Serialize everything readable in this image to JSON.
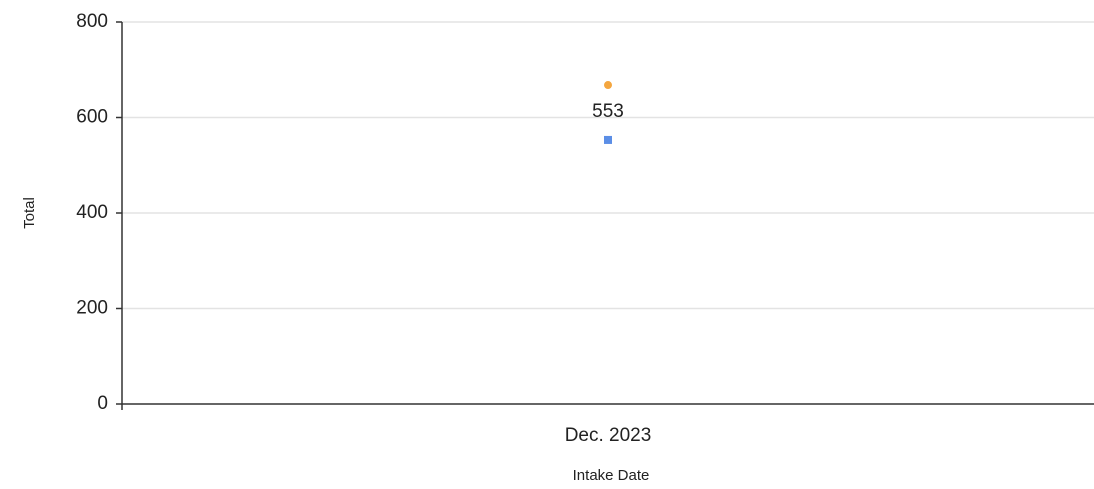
{
  "chart_data": {
    "type": "line",
    "categories": [
      "Dec. 2023"
    ],
    "series": [
      {
        "color": "#f4a63f",
        "marker": "circle",
        "values": [
          668
        ]
      },
      {
        "color": "#5b8ee6",
        "marker": "square",
        "values": [
          553
        ],
        "show_labels": true
      }
    ],
    "ylim": [
      0,
      800
    ],
    "yticks": [
      0,
      200,
      400,
      600,
      800
    ],
    "grid": true,
    "xlabel": "Intake Date",
    "ylabel": "Total"
  }
}
